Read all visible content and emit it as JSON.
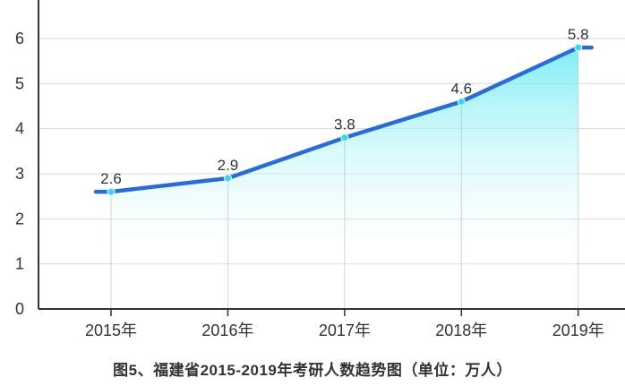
{
  "caption": "图5、福建省2015-2019年考研人数趋势图（单位：万人）",
  "chart_data": {
    "type": "area",
    "title": "图5、福建省2015-2019年考研人数趋势图（单位：万人）",
    "categories": [
      "2015年",
      "2016年",
      "2017年",
      "2018年",
      "2019年"
    ],
    "values": [
      2.6,
      2.9,
      3.8,
      4.6,
      5.8
    ],
    "point_labels": [
      "2.6",
      "2.9",
      "3.8",
      "4.6",
      "5.8"
    ],
    "xlabel": "",
    "ylabel": "",
    "unit": "万人",
    "ylim": [
      0,
      6.85
    ],
    "yticks": [
      0,
      1,
      2,
      3,
      4,
      5,
      6
    ],
    "grid": true,
    "legend": "none",
    "colors": {
      "line": "#2a6cd5",
      "marker": "#3ed6e6",
      "marker_ring": "#eafeff",
      "area_top": "#5fe9f3",
      "area_bottom": "#ffffff",
      "grid": "#d9d9d9",
      "drop_line": "#8fa9ad",
      "axis": "#333333",
      "text": "#333333"
    }
  }
}
